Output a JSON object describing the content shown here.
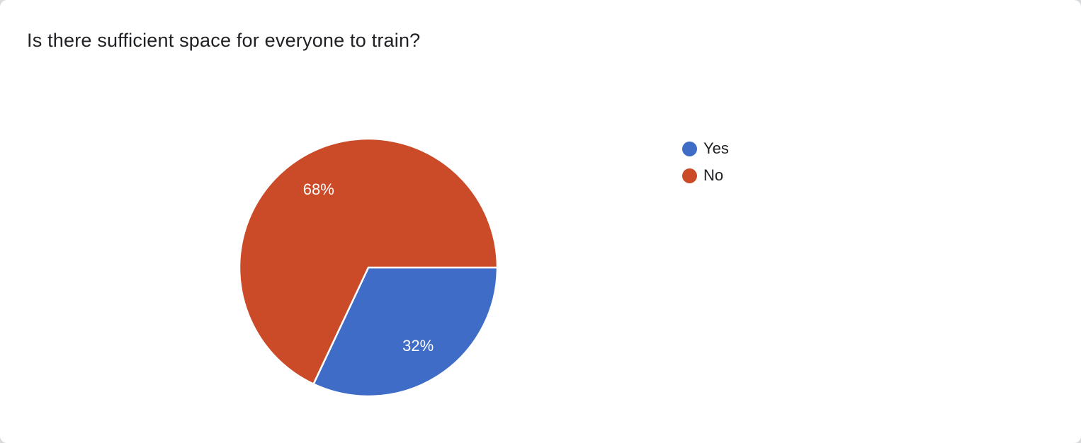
{
  "chart_data": {
    "type": "pie",
    "title": "Is there sufficient space for everyone to train?",
    "categories": [
      "Yes",
      "No"
    ],
    "values": [
      32,
      68
    ],
    "unit": "%",
    "legend_position": "right",
    "start_angle_deg": 0,
    "direction": "clockwise",
    "label_text_color": "#ffffff",
    "slices": [
      {
        "label": "Yes",
        "value": 32,
        "display": "32%",
        "color": "#3e6cc7"
      },
      {
        "label": "No",
        "value": 68,
        "display": "68%",
        "color": "#cb4a28"
      }
    ]
  }
}
